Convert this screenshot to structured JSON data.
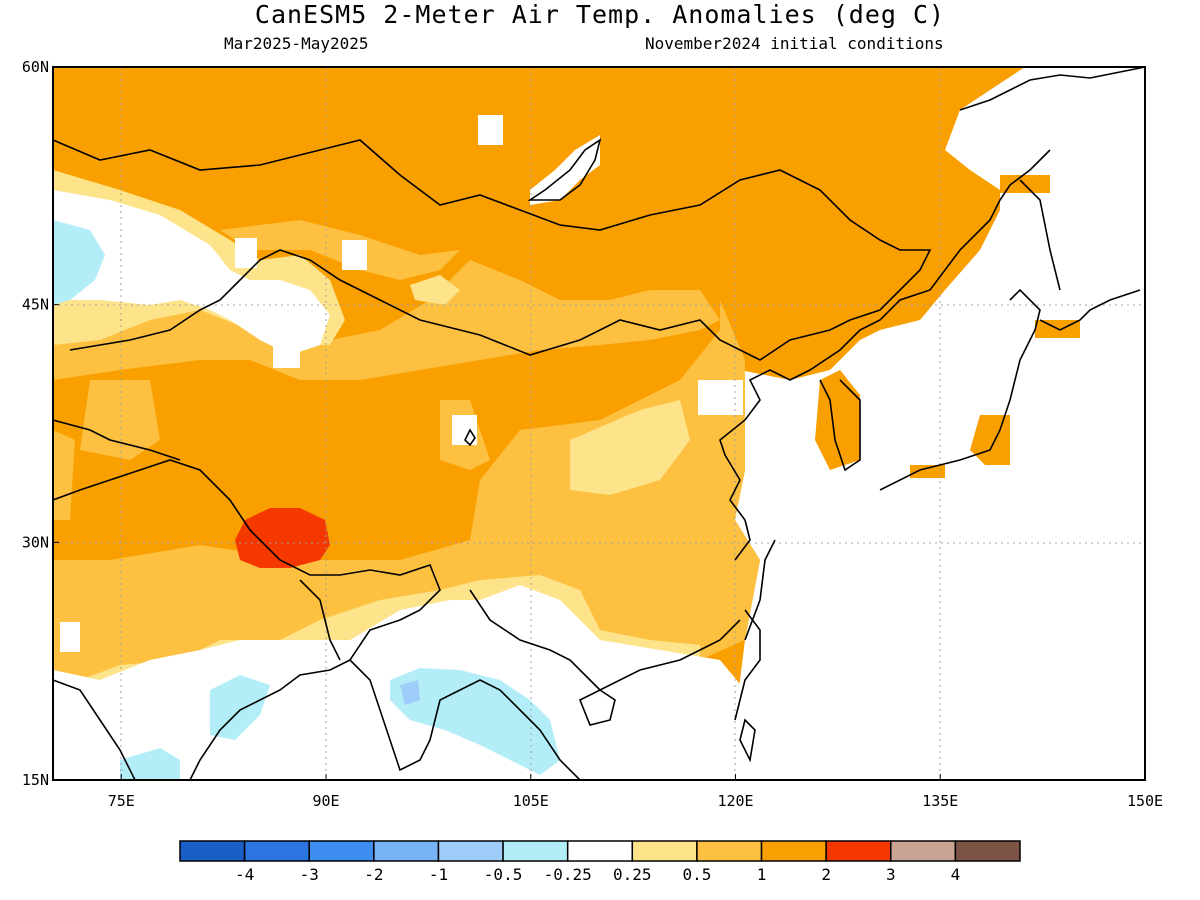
{
  "title": "CanESM5 2-Meter Air Temp. Anomalies (deg C)",
  "period": "Mar2025-May2025",
  "init_conditions": "November2024 initial conditions",
  "map": {
    "lon_range": [
      70,
      150
    ],
    "lat_range": [
      15,
      60
    ],
    "lon_ticks": [
      {
        "lon": 75,
        "label": "75E"
      },
      {
        "lon": 90,
        "label": "90E"
      },
      {
        "lon": 105,
        "label": "105E"
      },
      {
        "lon": 120,
        "label": "120E"
      },
      {
        "lon": 135,
        "label": "135E"
      },
      {
        "lon": 150,
        "label": "150E"
      }
    ],
    "lat_ticks": [
      {
        "lat": 60,
        "label": "60N"
      },
      {
        "lat": 45,
        "label": "45N"
      },
      {
        "lat": 30,
        "label": "30N"
      },
      {
        "lat": 15,
        "label": "15N"
      }
    ],
    "gridlines": "dotted"
  },
  "colorbar": {
    "colors": [
      "#1a5fc8",
      "#2a75e0",
      "#3d8ef0",
      "#78b4f5",
      "#9dcdf8",
      "#b2edf8",
      "#ffffff",
      "#fde48a",
      "#fdc040",
      "#fa9f00",
      "#f53800",
      "#c9a394",
      "#7b5445"
    ],
    "labels": [
      "-4",
      "-3",
      "-2",
      "-1",
      "-0.5",
      "-0.25",
      "0.25",
      "0.5",
      "1",
      "2",
      "3",
      "4"
    ]
  }
}
